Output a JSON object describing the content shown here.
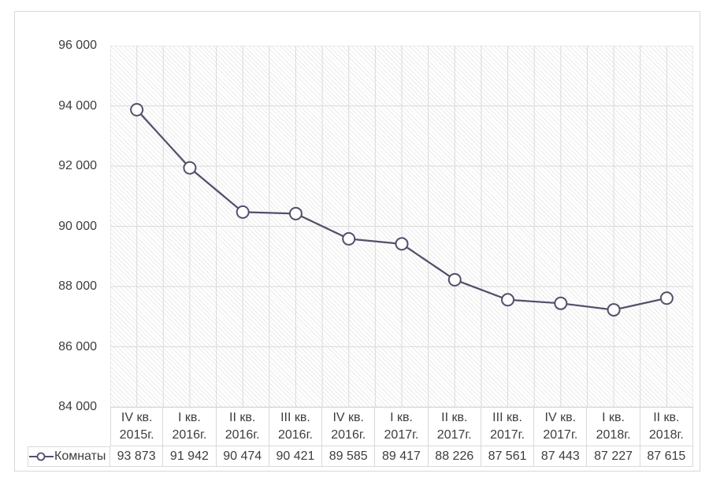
{
  "chart_data": {
    "type": "line",
    "title": "",
    "categories": [
      {
        "quarter": "IV кв.",
        "year": "2015г."
      },
      {
        "quarter": "I кв.",
        "year": "2016г."
      },
      {
        "quarter": "II кв.",
        "year": "2016г."
      },
      {
        "quarter": "III кв.",
        "year": "2016г."
      },
      {
        "quarter": "IV кв.",
        "year": "2016г."
      },
      {
        "quarter": "I кв.",
        "year": "2017г."
      },
      {
        "quarter": "II кв.",
        "year": "2017г."
      },
      {
        "quarter": "III кв.",
        "year": "2017г."
      },
      {
        "quarter": "IV кв.",
        "year": "2017г."
      },
      {
        "quarter": "I кв.",
        "year": "2018г."
      },
      {
        "quarter": "II кв.",
        "year": "2018г."
      }
    ],
    "series": [
      {
        "name": "Комнаты",
        "values": [
          93873,
          91942,
          90474,
          90421,
          89585,
          89417,
          88226,
          87561,
          87443,
          87227,
          87615
        ],
        "values_display": [
          "93 873",
          "91 942",
          "90 474",
          "90 421",
          "89 585",
          "89 417",
          "88 226",
          "87 561",
          "87 443",
          "87 227",
          "87 615"
        ]
      }
    ],
    "y_axis": {
      "min": 84000,
      "max": 96000,
      "step": 2000,
      "tick_labels": [
        "96 000",
        "94 000",
        "92 000",
        "90 000",
        "88 000",
        "86 000",
        "84 000"
      ]
    },
    "grid": true,
    "legend_position": "bottom-left-table",
    "line_color": "#534F6B",
    "marker": "circle-open",
    "marker_fill": "#ffffff",
    "grid_color": "#dadada",
    "hatch_background": true
  }
}
